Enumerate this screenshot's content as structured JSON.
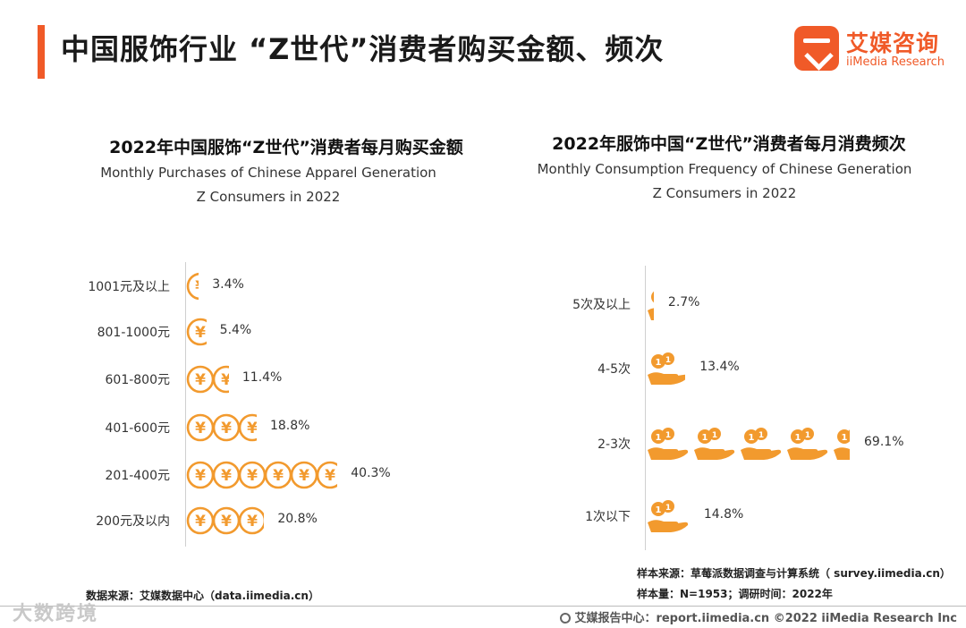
{
  "header": {
    "title": "中国服饰行业 “Z世代”消费者购买金额、频次",
    "logo_cn": "艾媒咨询",
    "logo_en": "iiMedia Research"
  },
  "chart_data": [
    {
      "type": "bar",
      "title": "2022年中国服饰“Z世代”消费者每月购买金额",
      "subtitle": "Monthly Purchases of Chinese Apparel Generation Z Consumers in 2022",
      "categories": [
        "1001元及以上",
        "801-1000元",
        "601-800元",
        "401-600元",
        "201-400元",
        "200元及以内"
      ],
      "values": [
        3.4,
        5.4,
        11.4,
        18.8,
        40.3,
        20.8
      ],
      "value_labels": [
        "3.4%",
        "5.4%",
        "11.4%",
        "18.8%",
        "40.3%",
        "20.8%"
      ],
      "unit": "%",
      "icon": "yuan-coin-icon",
      "color": "#f29a2e"
    },
    {
      "type": "bar",
      "title": "2022年服饰中国“Z世代”消费者每月消费频次",
      "subtitle": "Monthly Consumption Frequency of Chinese Generation Z Consumers in 2022",
      "categories": [
        "5次及以上",
        "4-5次",
        "2-3次",
        "1次以下"
      ],
      "values": [
        2.7,
        13.4,
        69.1,
        14.8
      ],
      "value_labels": [
        "2.7%",
        "13.4%",
        "69.1%",
        "14.8%"
      ],
      "unit": "%",
      "icon": "hand-coins-icon",
      "color": "#f29a2e"
    }
  ],
  "footnotes": {
    "left_source": "数据来源：艾媒数据中心（data.iimedia.cn）",
    "right_sample_source": "样本来源：草莓派数据调查与计算系统（ survey.iimedia.cn）",
    "right_sample_size": "样本量：N=1953；调研时间：2022年"
  },
  "footer": {
    "center_text": "艾媒报告中心：report.iimedia.cn ©2022 iiMedia Research Inc",
    "watermark": "大数跨境"
  }
}
